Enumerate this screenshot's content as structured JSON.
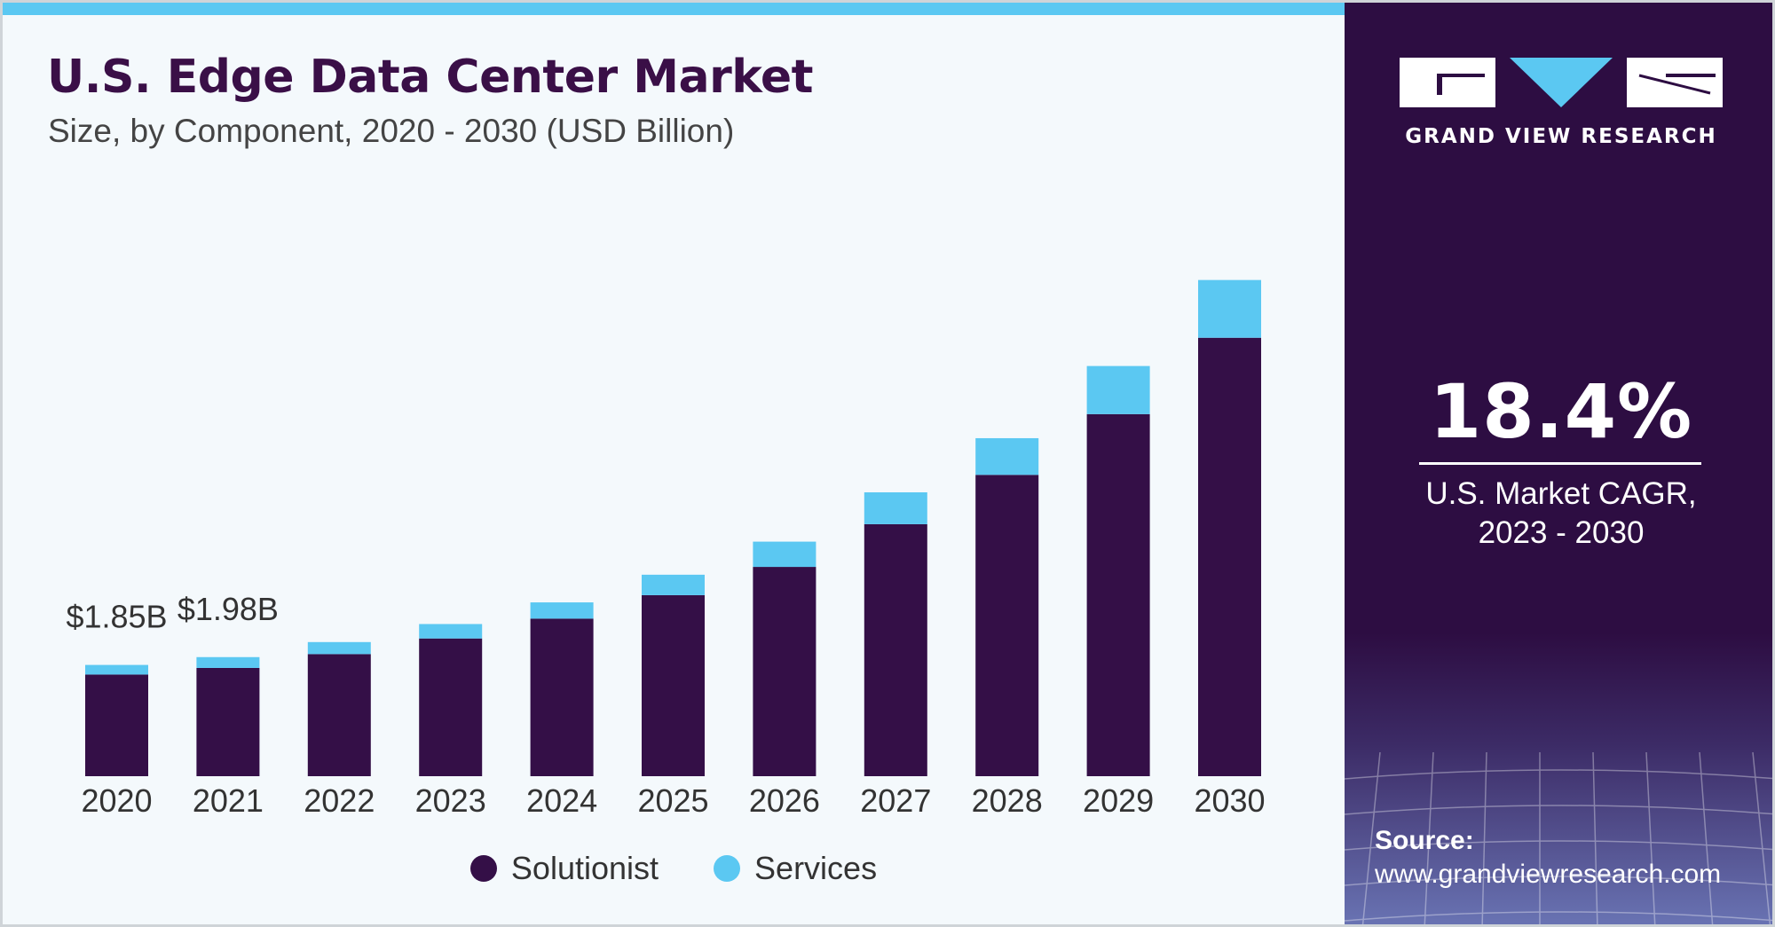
{
  "title": "U.S. Edge Data Center Market",
  "subtitle": "Size, by Component, 2020 - 2030 (USD Billion)",
  "colors": {
    "solutionist": "#340f47",
    "services": "#5bc8f2",
    "panel": "#2d0d42",
    "title": "#3a0f47"
  },
  "chart_data": {
    "type": "bar",
    "stacked": true,
    "categories": [
      "2020",
      "2021",
      "2022",
      "2023",
      "2024",
      "2025",
      "2026",
      "2027",
      "2028",
      "2029",
      "2030"
    ],
    "series": [
      {
        "name": "Solutionist",
        "values": [
          1.69,
          1.8,
          2.03,
          2.29,
          2.62,
          3.01,
          3.48,
          4.19,
          5.01,
          6.02,
          7.29
        ]
      },
      {
        "name": "Services",
        "values": [
          0.16,
          0.18,
          0.2,
          0.24,
          0.27,
          0.34,
          0.42,
          0.53,
          0.61,
          0.8,
          0.96
        ]
      }
    ],
    "data_labels": [
      {
        "category": "2020",
        "text": "$1.85B"
      },
      {
        "category": "2021",
        "text": "$1.98B"
      }
    ],
    "y_axis_visible": false,
    "grid": false,
    "legend_position": "bottom-center"
  },
  "legend": [
    "Solutionist",
    "Services"
  ],
  "logo": {
    "text": "GRAND VIEW RESEARCH"
  },
  "cagr": {
    "value": "18.4%",
    "label_line1": "U.S. Market CAGR,",
    "label_line2": "2023 - 2030"
  },
  "source": {
    "label": "Source:",
    "url": "www.grandviewresearch.com"
  }
}
